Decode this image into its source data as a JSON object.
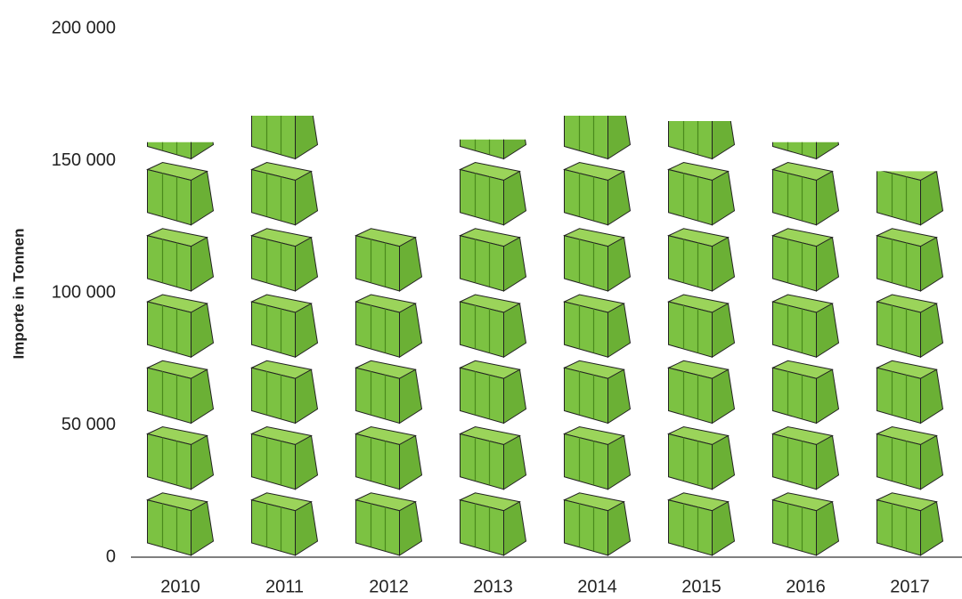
{
  "chart_data": {
    "type": "pictogram",
    "y_label": "Importe in Tonnen",
    "categories": [
      "2010",
      "2011",
      "2012",
      "2013",
      "2014",
      "2015",
      "2016",
      "2017"
    ],
    "values": [
      157000,
      167000,
      125000,
      158000,
      167000,
      165000,
      157000,
      146000
    ],
    "unit": 25000,
    "color": "#7cc242",
    "ylim": [
      0,
      200000
    ],
    "yticks": [
      0,
      {
        "value": 50000,
        "label": "50 000"
      },
      {
        "value": 100000,
        "label": "100 000"
      },
      {
        "value": 150000,
        "label": "150 000"
      },
      {
        "value": 200000,
        "label": "200 000"
      }
    ]
  }
}
